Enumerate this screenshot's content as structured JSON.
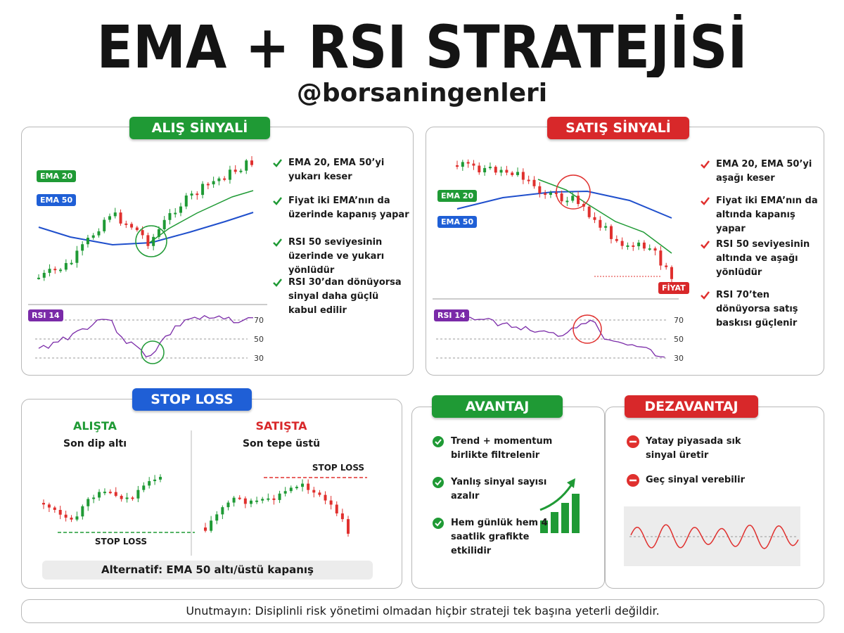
{
  "header": {
    "title": "EMA + RSI STRATEJİSİ",
    "handle": "@borsaningenleri"
  },
  "buy": {
    "badge": "ALIŞ SİNYALİ",
    "ema20": "EMA 20",
    "ema50": "EMA 50",
    "rsi": "RSI 14",
    "rsi_levels": [
      70,
      50,
      30
    ],
    "points": [
      "EMA 20, EMA 50’yi yukarı keser",
      "Fiyat iki EMA’nın da üzerinde kapanış yapar",
      "RSI 50 seviyesinin üzerinde ve yukarı yönlüdür",
      "RSI 30’dan dönüyorsa sinyal daha güçlü kabul edilir"
    ]
  },
  "sell": {
    "badge": "SATIŞ SİNYALİ",
    "ema20": "EMA 20",
    "ema50": "EMA 50",
    "price": "FİYAT",
    "rsi": "RSI 14",
    "rsi_levels": [
      70,
      50,
      30
    ],
    "points": [
      "EMA 20, EMA 50’yi aşağı keser",
      "Fiyat iki EMA’nın da altında kapanış yapar",
      "RSI 50 seviyesinin altında ve aşağı yönlüdür",
      "RSI 70’ten dönüyorsa satış baskısı güçlenir"
    ]
  },
  "stop_loss": {
    "badge": "STOP LOSS",
    "buy": {
      "title": "ALIŞTA",
      "text": "Son dip altı",
      "line": "STOP LOSS"
    },
    "sell": {
      "title": "SATIŞTA",
      "text": "Son tepe üstü",
      "line": "STOP LOSS"
    },
    "alternative": "Alternatif:  EMA 50 altı/üstü kapanış"
  },
  "advantage": {
    "badge": "AVANTAJ",
    "items": [
      "Trend + momentum birlikte filtrelenir",
      "Yanlış sinyal sayısı azalır",
      "Hem günlük hem 4 saatlik grafikte etkilidir"
    ]
  },
  "disadvantage": {
    "badge": "DEZAVANTAJ",
    "items": [
      "Yatay piyasada sık sinyal üretir",
      "Geç sinyal verebilir"
    ]
  },
  "footer": "Unutmayın:  Disiplinli risk yönetimi olmadan hiçbir strateji tek başına yeterli değildir."
}
